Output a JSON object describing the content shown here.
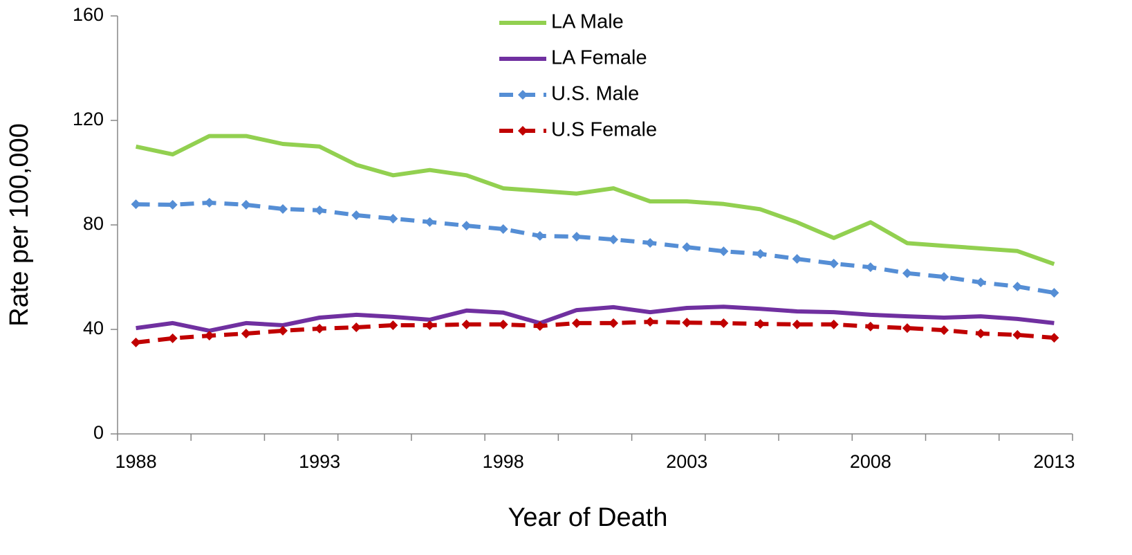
{
  "chart_data": {
    "type": "line",
    "x_label": "Year of Death",
    "y_label": "Rate per 100,000",
    "categories": [
      "1988",
      null,
      null,
      null,
      null,
      "1993",
      null,
      null,
      null,
      null,
      "1998",
      null,
      null,
      null,
      null,
      "2003",
      null,
      null,
      null,
      null,
      "2008",
      null,
      null,
      null,
      null,
      "2013"
    ],
    "ylim": [
      0,
      160
    ],
    "yticks": [
      0,
      40,
      80,
      120,
      160
    ],
    "grid": false,
    "legend": "top",
    "series": [
      {
        "name": "LA Male",
        "color": "#92d050",
        "dashed": false,
        "marker": null,
        "values": [
          110,
          107,
          114,
          114,
          111,
          110,
          103,
          99,
          101,
          99,
          94,
          93,
          92,
          94,
          89,
          89,
          88,
          86,
          81,
          75,
          81,
          73,
          72,
          71,
          70,
          65
        ]
      },
      {
        "name": "LA Female",
        "color": "#7030a0",
        "dashed": false,
        "marker": null,
        "values": [
          40.5,
          42.4,
          39.5,
          42.4,
          41.6,
          44.5,
          45.6,
          44.8,
          43.7,
          47.2,
          46.4,
          42.4,
          47.4,
          48.5,
          46.6,
          48.2,
          48.7,
          47.9,
          46.9,
          46.6,
          45.6,
          45,
          44.5,
          45,
          44,
          42.4
        ]
      },
      {
        "name": "U.S. Male",
        "color": "#558ed5",
        "dashed": true,
        "marker": "diamond",
        "values": [
          87.9,
          87.7,
          88.5,
          87.7,
          86.1,
          85.6,
          83.7,
          82.4,
          81.1,
          79.7,
          78.4,
          75.8,
          75.5,
          74.4,
          73.1,
          71.5,
          69.9,
          68.9,
          67,
          65.2,
          63.8,
          61.5,
          60.1,
          58,
          56.4,
          54
        ]
      },
      {
        "name": "U.S Female",
        "color": "#c00000",
        "dashed": true,
        "marker": "diamond",
        "values": [
          35,
          36.6,
          37.6,
          38.4,
          39.5,
          40.3,
          40.8,
          41.6,
          41.6,
          41.9,
          41.9,
          41.3,
          42.4,
          42.4,
          42.9,
          42.6,
          42.4,
          42.1,
          41.9,
          41.9,
          41.1,
          40.5,
          39.7,
          38.4,
          37.9,
          36.8
        ]
      }
    ]
  }
}
